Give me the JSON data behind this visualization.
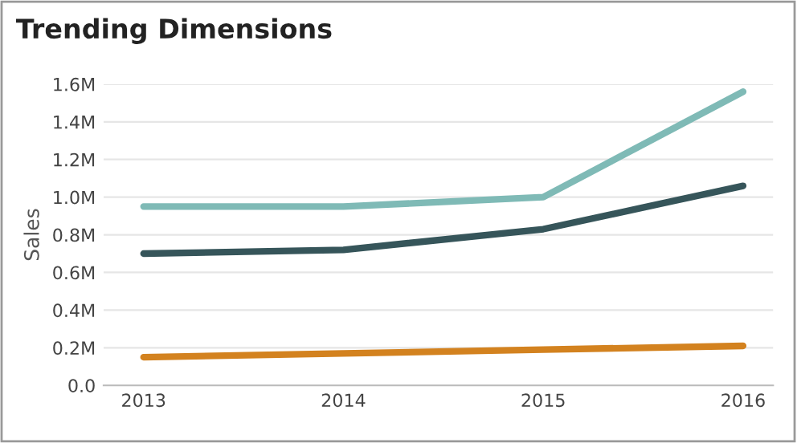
{
  "chart_data": {
    "type": "line",
    "title": "Trending Dimensions",
    "ylabel": "Sales",
    "x": [
      2013,
      2014,
      2015,
      2016
    ],
    "series": [
      {
        "color": "#7fbab6",
        "values": [
          950000,
          950000,
          1000000,
          1560000
        ]
      },
      {
        "color": "#36555a",
        "values": [
          700000,
          720000,
          830000,
          1060000
        ]
      },
      {
        "color": "#d3821f",
        "values": [
          150000,
          170000,
          190000,
          210000
        ]
      }
    ],
    "xlim": [
      2012.8,
      2016.15
    ],
    "xticks": [
      2013,
      2014,
      2015,
      2016
    ],
    "ylim": [
      0,
      1600000
    ],
    "yticks": [
      {
        "value": 0,
        "label": "0.0"
      },
      {
        "value": 200000,
        "label": "0.2M"
      },
      {
        "value": 400000,
        "label": "0.4M"
      },
      {
        "value": 600000,
        "label": "0.6M"
      },
      {
        "value": 800000,
        "label": "0.8M"
      },
      {
        "value": 1000000,
        "label": "1.0M"
      },
      {
        "value": 1200000,
        "label": "1.2M"
      },
      {
        "value": 1400000,
        "label": "1.4M"
      },
      {
        "value": 1600000,
        "label": "1.6M"
      }
    ],
    "grid": "y",
    "marker": "none",
    "line_style": "solid"
  }
}
